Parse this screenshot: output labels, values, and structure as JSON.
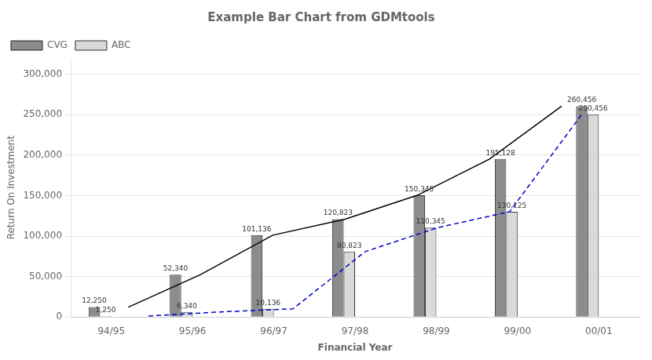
{
  "chart_data": {
    "type": "bar",
    "title": "Example Bar Chart from GDMtools",
    "xlabel": "Financial Year",
    "ylabel": "Return On Investment",
    "categories": [
      "94/95",
      "95/96",
      "96/97",
      "97/98",
      "98/99",
      "99/00",
      "00/01"
    ],
    "series": [
      {
        "name": "CVG",
        "color": "#8c8c8c",
        "values": [
          12250,
          52340,
          101136,
          120823,
          150345,
          195128,
          260456
        ],
        "value_labels": [
          "12,250",
          "52,340",
          "101,136",
          "120,823",
          "150,345",
          "195,128",
          "260,456"
        ]
      },
      {
        "name": "ABC",
        "color": "#d9d9d9",
        "values": [
          1250,
          6340,
          10136,
          80823,
          110345,
          130125,
          250456
        ],
        "value_labels": [
          "1,250",
          "6,340",
          "10,136",
          "80,823",
          "110,345",
          "130,125",
          "250,456"
        ]
      },
      {
        "type": "line",
        "color": "#000000",
        "line_style": "solid",
        "values": [
          12250,
          52340,
          101136,
          120823,
          150345,
          195128,
          260456
        ]
      },
      {
        "type": "line",
        "color": "#0000cc",
        "line_style": "dashed",
        "values": [
          1250,
          6340,
          10136,
          80823,
          110345,
          130125,
          250456
        ]
      }
    ],
    "ylim": [
      0,
      320000
    ],
    "yticks": [
      0,
      {
        "value": 50000,
        "label": "50,000"
      },
      {
        "value": 100000,
        "label": "100,000"
      },
      {
        "value": 150000,
        "label": "150,000"
      },
      {
        "value": 200000,
        "label": "200,000"
      },
      {
        "value": 250000,
        "label": "250,000"
      },
      {
        "value": 300000,
        "label": "300,000"
      }
    ],
    "grid": true,
    "legend": "upper left",
    "data_labels": true
  }
}
